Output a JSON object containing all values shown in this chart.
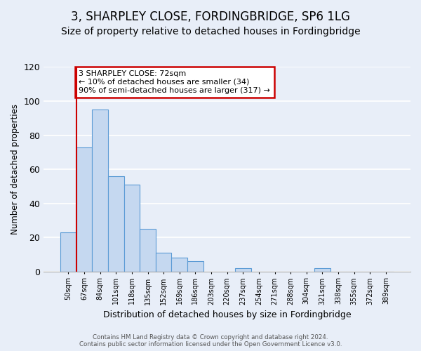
{
  "title": "3, SHARPLEY CLOSE, FORDINGBRIDGE, SP6 1LG",
  "subtitle": "Size of property relative to detached houses in Fordingbridge",
  "xlabel": "Distribution of detached houses by size in Fordingbridge",
  "ylabel": "Number of detached properties",
  "bar_labels": [
    "50sqm",
    "67sqm",
    "84sqm",
    "101sqm",
    "118sqm",
    "135sqm",
    "152sqm",
    "169sqm",
    "186sqm",
    "203sqm",
    "220sqm",
    "237sqm",
    "254sqm",
    "271sqm",
    "288sqm",
    "304sqm",
    "321sqm",
    "338sqm",
    "355sqm",
    "372sqm",
    "389sqm"
  ],
  "bar_values": [
    23,
    73,
    95,
    56,
    51,
    25,
    11,
    8,
    6,
    0,
    0,
    2,
    0,
    0,
    0,
    0,
    2,
    0,
    0,
    0,
    0
  ],
  "bar_color": "#c5d8f0",
  "bar_edge_color": "#5b9bd5",
  "vline_color": "#cc0000",
  "annotation_text": "3 SHARPLEY CLOSE: 72sqm\n← 10% of detached houses are smaller (34)\n90% of semi-detached houses are larger (317) →",
  "annotation_box_color": "white",
  "annotation_box_edge_color": "#cc0000",
  "ylim": [
    0,
    120
  ],
  "yticks": [
    0,
    20,
    40,
    60,
    80,
    100,
    120
  ],
  "footer_line1": "Contains HM Land Registry data © Crown copyright and database right 2024.",
  "footer_line2": "Contains public sector information licensed under the Open Government Licence v3.0.",
  "bg_color": "#e8eef8",
  "title_fontsize": 12,
  "subtitle_fontsize": 10
}
